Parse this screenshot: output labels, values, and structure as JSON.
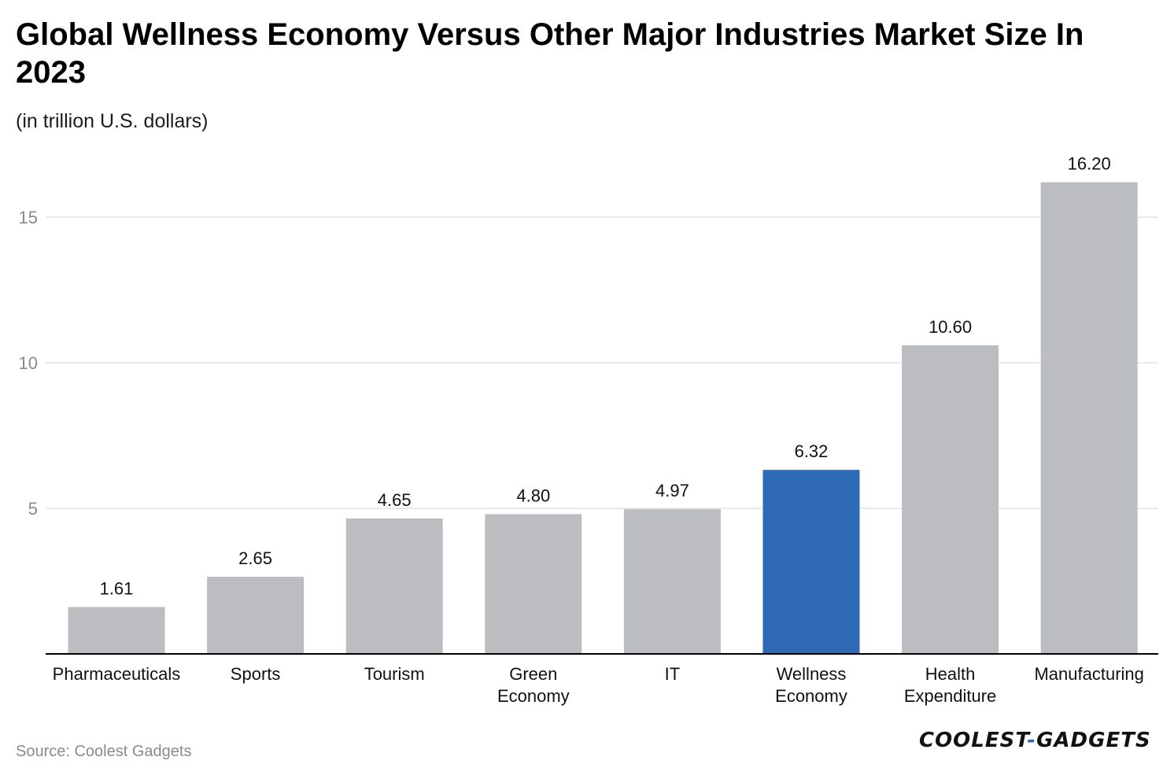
{
  "header": {
    "title": "Global Wellness Economy Versus Other Major Industries Market Size In 2023",
    "subtitle": "(in trillion U.S. dollars)"
  },
  "footer": {
    "source": "Source: Coolest Gadgets",
    "logo_left": "COOLEST",
    "logo_dash": "-",
    "logo_right": "GADGETS"
  },
  "colors": {
    "default_bar": "#bcbdc0",
    "highlight_bar": "#2e6bb4",
    "grid": "#e3e3e3",
    "axis": "#000000"
  },
  "chart_data": {
    "type": "bar",
    "title": "Global Wellness Economy Versus Other Major Industries Market Size In 2023",
    "subtitle": "(in trillion U.S. dollars)",
    "categories": [
      "Pharmaceuticals",
      "Sports",
      "Tourism",
      "Green Economy",
      "IT",
      "Wellness Economy",
      "Health Expenditure",
      "Manufacturing"
    ],
    "category_lines": [
      [
        "Pharmaceuticals"
      ],
      [
        "Sports"
      ],
      [
        "Tourism"
      ],
      [
        "Green",
        "Economy"
      ],
      [
        "IT"
      ],
      [
        "Wellness",
        "Economy"
      ],
      [
        "Health",
        "Expenditure"
      ],
      [
        "Manufacturing"
      ]
    ],
    "values": [
      1.61,
      2.65,
      4.65,
      4.8,
      4.97,
      6.32,
      10.6,
      16.2
    ],
    "value_labels": [
      "1.61",
      "2.65",
      "4.65",
      "4.80",
      "4.97",
      "6.32",
      "10.60",
      "16.20"
    ],
    "highlight_index": 5,
    "yticks": [
      5,
      10,
      15
    ],
    "ylim": [
      0,
      17.2
    ],
    "xlabel": "",
    "ylabel": "",
    "grid": true,
    "legend": "none"
  }
}
